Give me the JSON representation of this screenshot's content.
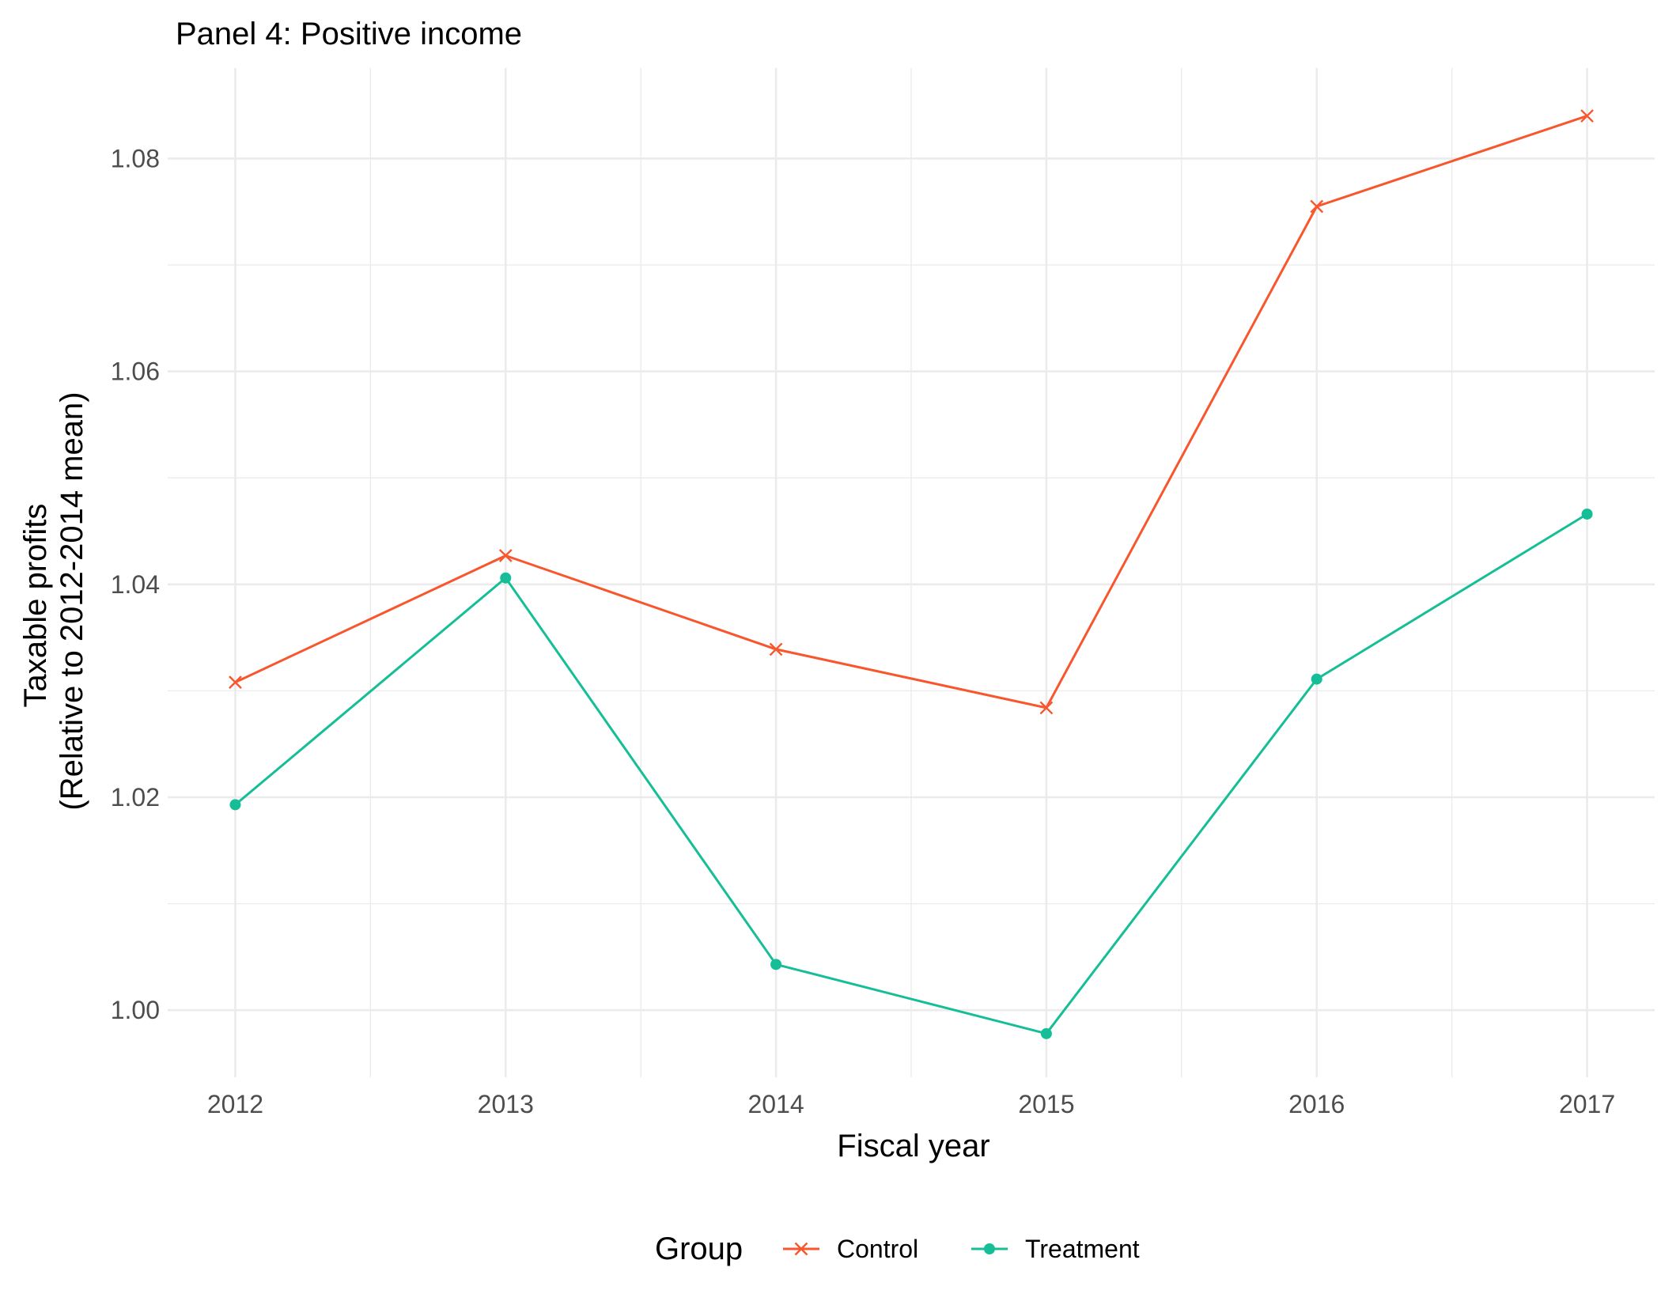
{
  "chart_data": {
    "type": "line",
    "title": "Panel 4: Positive income",
    "xlabel": "Fiscal year",
    "ylabel": [
      "Taxable profits",
      "(Relative to 2012-2014 mean)"
    ],
    "x": [
      2012,
      2013,
      2014,
      2015,
      2016,
      2017
    ],
    "x_tick_labels": [
      "2012",
      "2013",
      "2014",
      "2015",
      "2016",
      "2017"
    ],
    "y_ticks": [
      1.0,
      1.02,
      1.04,
      1.06,
      1.08
    ],
    "y_tick_labels": [
      "1.00",
      "1.02",
      "1.04",
      "1.06",
      "1.08"
    ],
    "xlim": [
      2011.75,
      2017.25
    ],
    "ylim": [
      0.9937,
      1.0885
    ],
    "grid": true,
    "legend": {
      "title": "Group",
      "position": "bottom"
    },
    "series": [
      {
        "name": "Control",
        "color": "#F8562D",
        "marker": "x",
        "values": [
          1.0308,
          1.0427,
          1.0339,
          1.0284,
          1.0755,
          1.084
        ]
      },
      {
        "name": "Treatment",
        "color": "#15BE96",
        "marker": "circle",
        "values": [
          1.0193,
          1.0406,
          1.0043,
          0.9978,
          1.0311,
          1.0466
        ]
      }
    ]
  }
}
